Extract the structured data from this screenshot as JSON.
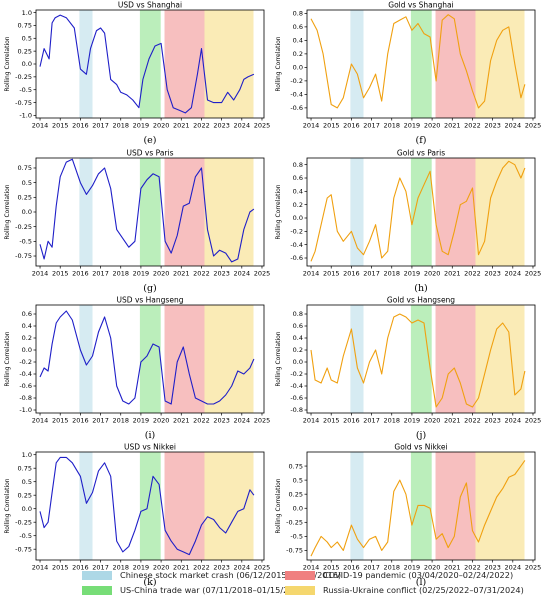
{
  "x_ticks": [
    2014,
    2015,
    2016,
    2017,
    2018,
    2019,
    2020,
    2021,
    2022,
    2023,
    2024,
    2025
  ],
  "ylabel": "Rolling Correlation",
  "periods": [
    {
      "name": "Chinese stock market crash (06/12/2015–02/10/2016)",
      "start": 2015.95,
      "end": 2016.6,
      "color": "#add8e6"
    },
    {
      "name": "US-China trade war (07/11/2018–01/15/2020)",
      "start": 2018.95,
      "end": 2019.98,
      "color": "#77dd77"
    },
    {
      "name": "COVID-19 pandemic (03/04/2020–02/24/2022)",
      "start": 2020.17,
      "end": 2022.15,
      "color": "#f08080"
    },
    {
      "name": "Russia-Ukraine conflict (02/25/2022–07/31/2024)",
      "start": 2022.15,
      "end": 2024.58,
      "color": "#f5d76e"
    }
  ],
  "chart_data": [
    {
      "type": "line",
      "title": "USD vs Shanghai",
      "caption": "(e)",
      "color": "#1f1fc8",
      "xlim": [
        2013.8,
        2025.1
      ],
      "ylim": [
        -1.05,
        1.05
      ],
      "yticks": [
        -1.0,
        -0.75,
        -0.5,
        -0.25,
        0.0,
        0.25,
        0.5,
        0.75,
        1.0
      ],
      "x": [
        2014.0,
        2014.2,
        2014.45,
        2014.6,
        2014.75,
        2015.0,
        2015.3,
        2015.7,
        2016.0,
        2016.3,
        2016.5,
        2016.8,
        2017.0,
        2017.2,
        2017.5,
        2017.8,
        2018.0,
        2018.3,
        2018.6,
        2018.9,
        2019.1,
        2019.4,
        2019.7,
        2020.0,
        2020.3,
        2020.6,
        2020.9,
        2021.2,
        2021.5,
        2021.8,
        2022.0,
        2022.3,
        2022.6,
        2023.0,
        2023.3,
        2023.6,
        2023.9,
        2024.1,
        2024.3,
        2024.6
      ],
      "y": [
        -0.05,
        0.3,
        0.1,
        0.8,
        0.9,
        0.95,
        0.9,
        0.7,
        -0.1,
        -0.2,
        0.3,
        0.65,
        0.7,
        0.6,
        -0.3,
        -0.4,
        -0.55,
        -0.6,
        -0.7,
        -0.85,
        -0.3,
        0.1,
        0.35,
        0.4,
        -0.5,
        -0.85,
        -0.9,
        -0.95,
        -0.85,
        -0.2,
        0.3,
        -0.7,
        -0.75,
        -0.75,
        -0.55,
        -0.7,
        -0.5,
        -0.3,
        -0.25,
        -0.2
      ]
    },
    {
      "type": "line",
      "title": "Gold vs Shanghai",
      "caption": "(f)",
      "color": "#f0a010",
      "xlim": [
        2013.8,
        2025.1
      ],
      "ylim": [
        -0.75,
        0.85
      ],
      "yticks": [
        -0.6,
        -0.4,
        -0.2,
        0.0,
        0.2,
        0.4,
        0.6,
        0.8
      ],
      "x": [
        2014.0,
        2014.3,
        2014.6,
        2015.0,
        2015.3,
        2015.6,
        2016.0,
        2016.3,
        2016.6,
        2016.9,
        2017.2,
        2017.5,
        2017.8,
        2018.1,
        2018.4,
        2018.7,
        2019.0,
        2019.3,
        2019.6,
        2019.9,
        2020.2,
        2020.5,
        2020.8,
        2021.1,
        2021.4,
        2021.7,
        2022.0,
        2022.3,
        2022.6,
        2022.9,
        2023.2,
        2023.5,
        2023.8,
        2024.1,
        2024.4,
        2024.6
      ],
      "y": [
        0.72,
        0.55,
        0.2,
        -0.55,
        -0.6,
        -0.45,
        0.05,
        -0.1,
        -0.45,
        -0.3,
        -0.1,
        -0.5,
        0.2,
        0.65,
        0.7,
        0.75,
        0.55,
        0.65,
        0.5,
        0.45,
        -0.2,
        0.7,
        0.78,
        0.72,
        0.2,
        -0.05,
        -0.35,
        -0.6,
        -0.5,
        0.1,
        0.4,
        0.55,
        0.6,
        0.05,
        -0.45,
        -0.25
      ]
    },
    {
      "type": "line",
      "title": "USD vs Paris",
      "caption": "(g)",
      "color": "#1f1fc8",
      "xlim": [
        2013.8,
        2025.1
      ],
      "ylim": [
        -0.92,
        0.92
      ],
      "yticks": [
        -0.75,
        -0.5,
        -0.25,
        0.0,
        0.25,
        0.5,
        0.75
      ],
      "x": [
        2014.0,
        2014.2,
        2014.4,
        2014.6,
        2014.8,
        2015.0,
        2015.3,
        2015.6,
        2016.0,
        2016.3,
        2016.6,
        2016.9,
        2017.2,
        2017.5,
        2017.8,
        2018.1,
        2018.4,
        2018.7,
        2019.0,
        2019.3,
        2019.6,
        2019.9,
        2020.2,
        2020.5,
        2020.8,
        2021.1,
        2021.4,
        2021.7,
        2022.0,
        2022.3,
        2022.6,
        2022.9,
        2023.2,
        2023.5,
        2023.8,
        2024.1,
        2024.4,
        2024.6
      ],
      "y": [
        -0.55,
        -0.8,
        -0.5,
        -0.6,
        0.1,
        0.6,
        0.85,
        0.9,
        0.5,
        0.3,
        0.45,
        0.65,
        0.75,
        0.4,
        -0.3,
        -0.45,
        -0.6,
        -0.5,
        0.4,
        0.55,
        0.65,
        0.6,
        -0.5,
        -0.7,
        -0.4,
        0.1,
        0.15,
        0.6,
        0.75,
        -0.3,
        -0.75,
        -0.65,
        -0.7,
        -0.85,
        -0.8,
        -0.3,
        0.0,
        0.05
      ]
    },
    {
      "type": "line",
      "title": "Gold vs Paris",
      "caption": "(h)",
      "color": "#f0a010",
      "xlim": [
        2013.8,
        2025.1
      ],
      "ylim": [
        -0.72,
        0.9
      ],
      "yticks": [
        -0.6,
        -0.4,
        -0.2,
        0.0,
        0.2,
        0.4,
        0.6,
        0.8
      ],
      "x": [
        2014.0,
        2014.2,
        2014.5,
        2014.8,
        2015.0,
        2015.3,
        2015.6,
        2016.0,
        2016.3,
        2016.6,
        2016.9,
        2017.2,
        2017.5,
        2017.8,
        2018.1,
        2018.4,
        2018.7,
        2019.0,
        2019.3,
        2019.6,
        2019.9,
        2020.2,
        2020.5,
        2020.8,
        2021.1,
        2021.4,
        2021.7,
        2022.0,
        2022.3,
        2022.6,
        2022.9,
        2023.2,
        2023.5,
        2023.8,
        2024.1,
        2024.4,
        2024.6
      ],
      "y": [
        -0.65,
        -0.5,
        -0.1,
        0.3,
        0.35,
        -0.2,
        -0.35,
        -0.2,
        -0.45,
        -0.55,
        -0.35,
        -0.1,
        -0.6,
        -0.5,
        0.3,
        0.6,
        0.4,
        -0.1,
        0.3,
        0.5,
        0.7,
        -0.1,
        -0.5,
        -0.55,
        -0.2,
        0.2,
        0.25,
        0.45,
        -0.55,
        -0.35,
        0.3,
        0.55,
        0.75,
        0.85,
        0.8,
        0.6,
        0.75
      ]
    },
    {
      "type": "line",
      "title": "USD vs Hangseng",
      "caption": "(i)",
      "color": "#1f1fc8",
      "xlim": [
        2013.8,
        2025.1
      ],
      "ylim": [
        -1.05,
        0.75
      ],
      "yticks": [
        -1.0,
        -0.8,
        -0.6,
        -0.4,
        -0.2,
        0.0,
        0.2,
        0.4,
        0.6
      ],
      "x": [
        2014.0,
        2014.2,
        2014.4,
        2014.6,
        2014.8,
        2015.0,
        2015.3,
        2015.6,
        2016.0,
        2016.3,
        2016.6,
        2016.9,
        2017.2,
        2017.5,
        2017.8,
        2018.1,
        2018.4,
        2018.7,
        2019.0,
        2019.3,
        2019.6,
        2019.9,
        2020.2,
        2020.5,
        2020.8,
        2021.1,
        2021.4,
        2021.7,
        2022.0,
        2022.3,
        2022.6,
        2022.9,
        2023.2,
        2023.5,
        2023.8,
        2024.1,
        2024.4,
        2024.6
      ],
      "y": [
        -0.45,
        -0.3,
        -0.35,
        0.1,
        0.45,
        0.55,
        0.65,
        0.5,
        0.0,
        -0.25,
        -0.1,
        0.3,
        0.55,
        0.2,
        -0.6,
        -0.85,
        -0.9,
        -0.8,
        -0.2,
        -0.1,
        0.1,
        0.05,
        -0.85,
        -0.9,
        -0.2,
        0.05,
        -0.4,
        -0.8,
        -0.85,
        -0.9,
        -0.9,
        -0.85,
        -0.75,
        -0.6,
        -0.35,
        -0.4,
        -0.3,
        -0.15
      ]
    },
    {
      "type": "line",
      "title": "Gold vs Hangseng",
      "caption": "(j)",
      "color": "#f0a010",
      "xlim": [
        2013.8,
        2025.1
      ],
      "ylim": [
        -0.85,
        0.95
      ],
      "yticks": [
        -0.8,
        -0.6,
        -0.4,
        -0.2,
        0.0,
        0.2,
        0.4,
        0.6,
        0.8
      ],
      "x": [
        2014.0,
        2014.2,
        2014.5,
        2014.8,
        2015.0,
        2015.3,
        2015.6,
        2016.0,
        2016.3,
        2016.6,
        2016.9,
        2017.2,
        2017.5,
        2017.8,
        2018.1,
        2018.4,
        2018.7,
        2019.0,
        2019.3,
        2019.6,
        2019.9,
        2020.2,
        2020.5,
        2020.8,
        2021.1,
        2021.4,
        2021.7,
        2022.0,
        2022.3,
        2022.6,
        2022.9,
        2023.2,
        2023.5,
        2023.8,
        2024.1,
        2024.4,
        2024.6
      ],
      "y": [
        0.2,
        -0.3,
        -0.35,
        -0.1,
        -0.3,
        -0.35,
        0.1,
        0.55,
        -0.1,
        -0.35,
        0.0,
        0.2,
        -0.2,
        0.4,
        0.75,
        0.8,
        0.75,
        0.65,
        0.7,
        0.65,
        -0.1,
        -0.75,
        -0.6,
        -0.2,
        -0.1,
        -0.35,
        -0.7,
        -0.75,
        -0.6,
        -0.2,
        0.2,
        0.55,
        0.65,
        0.5,
        -0.55,
        -0.45,
        -0.15
      ]
    },
    {
      "type": "line",
      "title": "USD vs Nikkei",
      "caption": "(k)",
      "color": "#1f1fc8",
      "xlim": [
        2013.8,
        2025.1
      ],
      "ylim": [
        -0.95,
        1.05
      ],
      "yticks": [
        -0.75,
        -0.5,
        -0.25,
        0.0,
        0.25,
        0.5,
        0.75,
        1.0
      ],
      "x": [
        2014.0,
        2014.2,
        2014.4,
        2014.6,
        2014.8,
        2015.0,
        2015.3,
        2015.6,
        2016.0,
        2016.3,
        2016.6,
        2016.9,
        2017.2,
        2017.5,
        2017.8,
        2018.1,
        2018.4,
        2018.7,
        2019.0,
        2019.3,
        2019.6,
        2019.9,
        2020.2,
        2020.5,
        2020.8,
        2021.1,
        2021.4,
        2021.7,
        2022.0,
        2022.3,
        2022.6,
        2022.9,
        2023.2,
        2023.5,
        2023.8,
        2024.1,
        2024.4,
        2024.6
      ],
      "y": [
        -0.05,
        -0.35,
        -0.25,
        0.3,
        0.85,
        0.95,
        0.95,
        0.85,
        0.6,
        0.1,
        0.3,
        0.7,
        0.85,
        0.6,
        -0.6,
        -0.8,
        -0.7,
        -0.4,
        -0.05,
        0.0,
        0.6,
        0.45,
        -0.4,
        -0.6,
        -0.75,
        -0.8,
        -0.85,
        -0.6,
        -0.3,
        -0.15,
        -0.2,
        -0.35,
        -0.45,
        -0.25,
        -0.05,
        0.0,
        0.35,
        0.25
      ]
    },
    {
      "type": "line",
      "title": "Gold vs Nikkei",
      "caption": "(l)",
      "color": "#f0a010",
      "xlim": [
        2013.8,
        2025.1
      ],
      "ylim": [
        -0.92,
        1.0
      ],
      "yticks": [
        -0.75,
        -0.5,
        -0.25,
        0.0,
        0.25,
        0.5,
        0.75
      ],
      "x": [
        2014.0,
        2014.2,
        2014.5,
        2014.8,
        2015.0,
        2015.3,
        2015.6,
        2016.0,
        2016.3,
        2016.6,
        2016.9,
        2017.2,
        2017.5,
        2017.8,
        2018.1,
        2018.4,
        2018.7,
        2019.0,
        2019.3,
        2019.6,
        2019.9,
        2020.2,
        2020.5,
        2020.8,
        2021.1,
        2021.4,
        2021.7,
        2022.0,
        2022.3,
        2022.6,
        2022.9,
        2023.2,
        2023.5,
        2023.8,
        2024.1,
        2024.4,
        2024.6
      ],
      "y": [
        -0.85,
        -0.7,
        -0.5,
        -0.6,
        -0.7,
        -0.6,
        -0.75,
        -0.3,
        -0.55,
        -0.7,
        -0.55,
        -0.5,
        -0.75,
        -0.6,
        0.3,
        0.5,
        0.25,
        -0.3,
        0.05,
        0.05,
        0.0,
        -0.55,
        -0.45,
        -0.7,
        -0.5,
        0.2,
        0.45,
        -0.4,
        -0.6,
        -0.3,
        -0.05,
        0.2,
        0.35,
        0.55,
        0.6,
        0.75,
        0.85
      ]
    }
  ]
}
